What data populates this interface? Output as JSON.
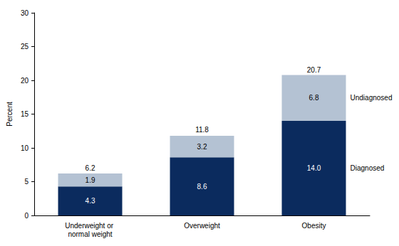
{
  "chart_data": {
    "type": "bar",
    "stacked": true,
    "data_labels": true,
    "categories": [
      "Underweight or normal weight",
      "Overweight",
      "Obesity"
    ],
    "series": [
      {
        "name": "Diagnosed",
        "color": "#0b2b5e",
        "values": [
          4.3,
          8.6,
          14.0
        ],
        "value_labels": [
          "4.3",
          "8.6",
          "14.0"
        ]
      },
      {
        "name": "Undiagnosed",
        "color": "#b4c2d3",
        "values": [
          1.9,
          3.2,
          6.8
        ]
      }
    ],
    "totals": [
      6.2,
      11.8,
      20.7
    ],
    "ylabel": "Percent",
    "ylim": [
      0,
      30
    ],
    "yticks": [
      0,
      5,
      10,
      15,
      20,
      25,
      30
    ],
    "grid": false
  }
}
